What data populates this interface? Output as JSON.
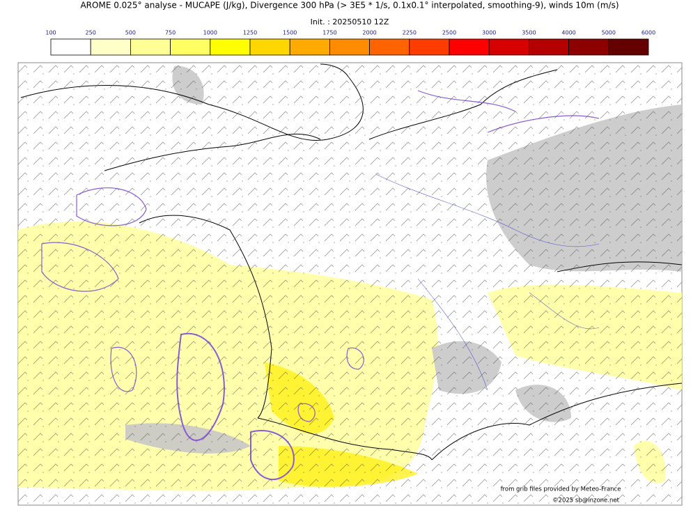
{
  "title": "AROME 0.025° analyse - MUCAPE (J/kg), Divergence 300 hPa (> 3E5 * 1/s, 0.1x0.1° interpolated, smoothing-9), winds 10m (m/s)",
  "init": "Init. : 20250510 12Z",
  "colorbar": {
    "levels": [
      100,
      250,
      500,
      750,
      1000,
      1250,
      1500,
      1750,
      2000,
      2250,
      2500,
      3000,
      3500,
      4000,
      5000,
      6000
    ],
    "colors": [
      "#ffffff",
      "#ffffc8",
      "#ffff96",
      "#ffff64",
      "#ffff00",
      "#ffd700",
      "#ffaa00",
      "#ff8c00",
      "#ff6400",
      "#ff3c00",
      "#ff0000",
      "#d70000",
      "#b40000",
      "#8c0000",
      "#640000"
    ]
  },
  "credits": [
    "from grib files provided by Meteo-France",
    "©2025 sb@inzone.net"
  ]
}
